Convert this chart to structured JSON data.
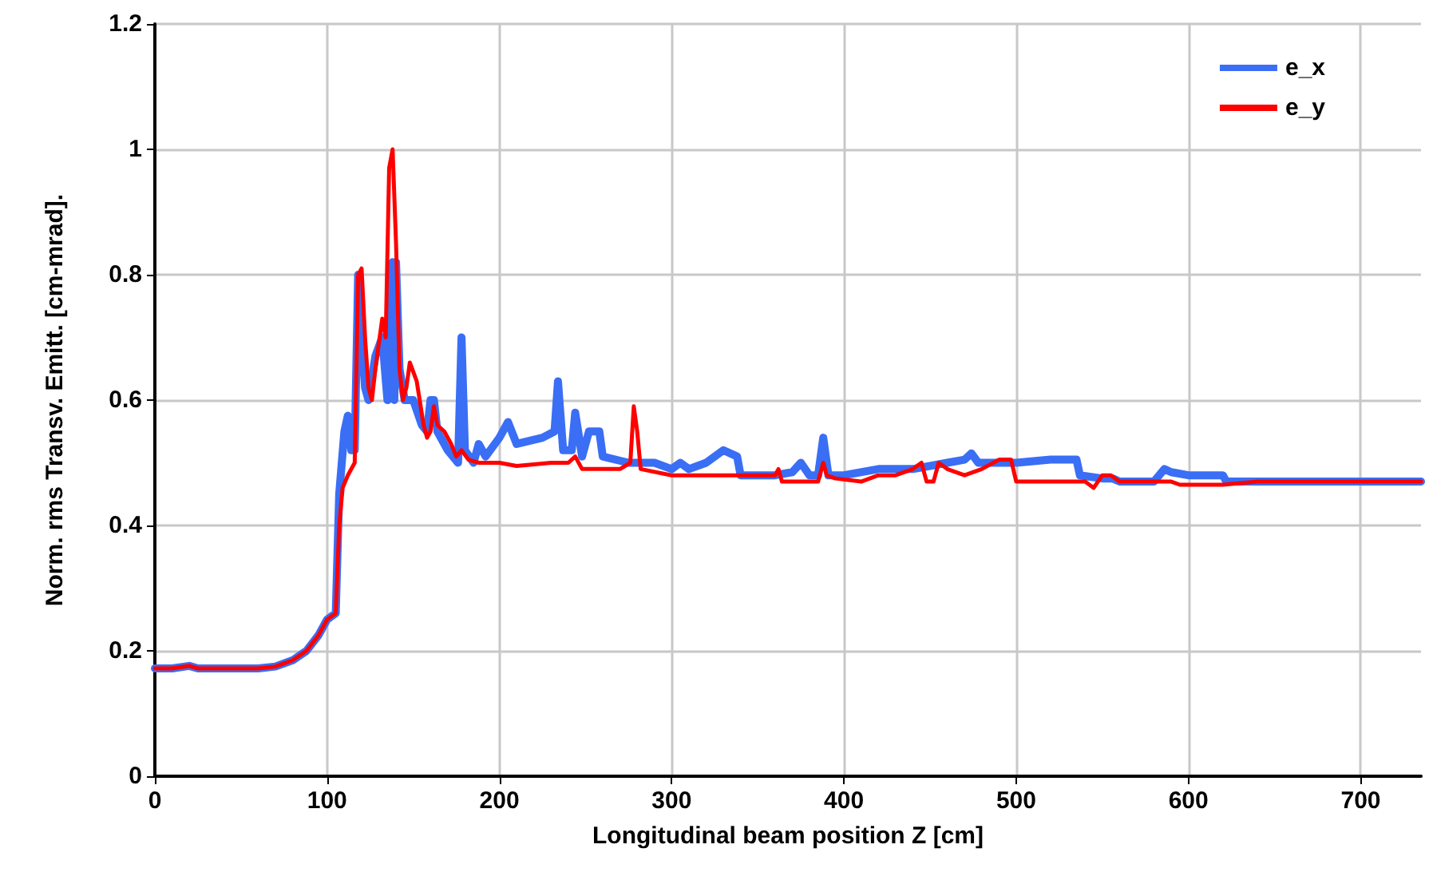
{
  "chart_data": {
    "type": "line",
    "xlabel": "Longitudinal beam position Z [cm]",
    "ylabel": "Norm. rms Transv. Emitt. [cm-mrad].",
    "xlim": [
      0,
      735
    ],
    "xticks": [
      0,
      100,
      200,
      300,
      400,
      500,
      600,
      700
    ],
    "ylim": [
      0,
      1.2
    ],
    "yticks": [
      0,
      0.2,
      0.4,
      0.6,
      0.8,
      1,
      1.2
    ],
    "grid": true,
    "legend": "top right",
    "marker": "none",
    "line_style": "solid",
    "series": [
      {
        "name": "e_x",
        "color": "#3a6ef5",
        "x": [
          0,
          10,
          20,
          25,
          40,
          60,
          70,
          80,
          88,
          95,
          100,
          105,
          107,
          110,
          112,
          114,
          116,
          118,
          120,
          122,
          124,
          128,
          132,
          135,
          136,
          138,
          139,
          140,
          142,
          145,
          150,
          155,
          158,
          160,
          162,
          164,
          170,
          176,
          178,
          180,
          185,
          188,
          192,
          200,
          205,
          210,
          225,
          232,
          234,
          237,
          242,
          244,
          248,
          252,
          258,
          260,
          275,
          282,
          290,
          300,
          305,
          310,
          320,
          330,
          338,
          340,
          360,
          370,
          375,
          380,
          385,
          388,
          391,
          400,
          420,
          440,
          460,
          470,
          474,
          478,
          490,
          500,
          520,
          535,
          537,
          550,
          556,
          560,
          580,
          586,
          590,
          600,
          620,
          622,
          735
        ],
        "values": [
          0.172,
          0.172,
          0.176,
          0.172,
          0.172,
          0.172,
          0.175,
          0.185,
          0.2,
          0.225,
          0.25,
          0.26,
          0.45,
          0.55,
          0.575,
          0.52,
          0.52,
          0.8,
          0.7,
          0.62,
          0.6,
          0.67,
          0.7,
          0.6,
          0.7,
          0.82,
          0.6,
          0.82,
          0.65,
          0.6,
          0.6,
          0.56,
          0.55,
          0.6,
          0.6,
          0.55,
          0.52,
          0.5,
          0.7,
          0.52,
          0.5,
          0.53,
          0.51,
          0.54,
          0.565,
          0.53,
          0.54,
          0.55,
          0.63,
          0.52,
          0.52,
          0.58,
          0.51,
          0.55,
          0.55,
          0.51,
          0.5,
          0.5,
          0.5,
          0.49,
          0.5,
          0.49,
          0.5,
          0.52,
          0.51,
          0.48,
          0.48,
          0.485,
          0.5,
          0.48,
          0.48,
          0.54,
          0.48,
          0.48,
          0.49,
          0.49,
          0.5,
          0.505,
          0.515,
          0.5,
          0.5,
          0.5,
          0.505,
          0.505,
          0.48,
          0.475,
          0.475,
          0.47,
          0.47,
          0.49,
          0.485,
          0.48,
          0.48,
          0.47,
          0.47
        ]
      },
      {
        "name": "e_y",
        "color": "#ff0000",
        "x": [
          0,
          10,
          20,
          25,
          40,
          60,
          70,
          80,
          88,
          95,
          100,
          105,
          107,
          109,
          112,
          116,
          118,
          120,
          122,
          124,
          126,
          128,
          132,
          134,
          136,
          138,
          140,
          142,
          144,
          146,
          148,
          152,
          156,
          158,
          160,
          162,
          164,
          168,
          172,
          175,
          178,
          182,
          188,
          195,
          200,
          210,
          230,
          240,
          244,
          248,
          255,
          270,
          276,
          278,
          280,
          282,
          300,
          350,
          360,
          362,
          364,
          380,
          385,
          388,
          390,
          395,
          410,
          420,
          430,
          440,
          445,
          448,
          452,
          455,
          460,
          470,
          480,
          490,
          497,
          500,
          540,
          545,
          550,
          555,
          560,
          580,
          590,
          595,
          620,
          640,
          735
        ],
        "values": [
          0.172,
          0.172,
          0.176,
          0.172,
          0.172,
          0.172,
          0.175,
          0.185,
          0.2,
          0.225,
          0.25,
          0.26,
          0.4,
          0.46,
          0.48,
          0.5,
          0.8,
          0.81,
          0.7,
          0.62,
          0.6,
          0.65,
          0.73,
          0.7,
          0.97,
          1.0,
          0.85,
          0.65,
          0.6,
          0.62,
          0.66,
          0.63,
          0.56,
          0.54,
          0.55,
          0.59,
          0.56,
          0.55,
          0.53,
          0.51,
          0.52,
          0.505,
          0.5,
          0.5,
          0.5,
          0.495,
          0.5,
          0.5,
          0.51,
          0.49,
          0.49,
          0.49,
          0.5,
          0.59,
          0.55,
          0.49,
          0.48,
          0.48,
          0.48,
          0.49,
          0.47,
          0.47,
          0.47,
          0.5,
          0.48,
          0.475,
          0.47,
          0.48,
          0.48,
          0.49,
          0.5,
          0.47,
          0.47,
          0.5,
          0.49,
          0.48,
          0.49,
          0.505,
          0.505,
          0.47,
          0.47,
          0.46,
          0.48,
          0.48,
          0.47,
          0.47,
          0.47,
          0.465,
          0.465,
          0.47,
          0.47
        ]
      }
    ]
  }
}
